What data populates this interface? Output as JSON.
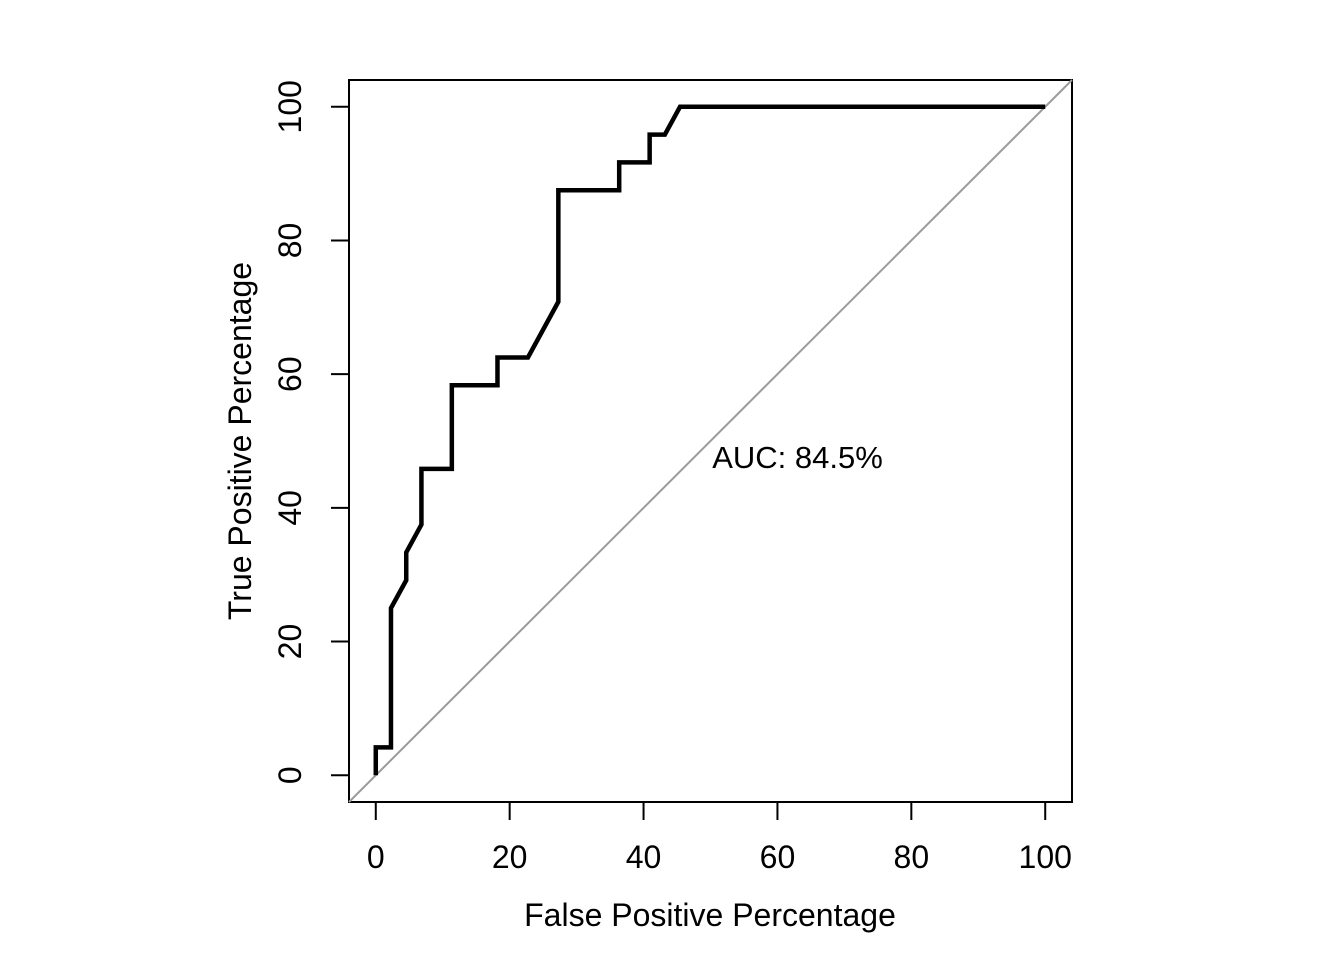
{
  "chart_data": {
    "type": "line",
    "title": "",
    "xlabel": "False Positive Percentage",
    "ylabel": "True Positive Percentage",
    "xlim": [
      0,
      100
    ],
    "ylim": [
      0,
      100
    ],
    "xticks": [
      0,
      20,
      40,
      60,
      80,
      100
    ],
    "yticks": [
      0,
      20,
      40,
      60,
      80,
      100
    ],
    "grid": false,
    "legend": "none",
    "axis_padding_fraction": 0.04,
    "series": [
      {
        "name": "ROC curve",
        "color": "#000000",
        "line_width": 4.5,
        "points": [
          [
            0,
            0
          ],
          [
            0,
            4.17
          ],
          [
            2.27,
            4.17
          ],
          [
            2.27,
            25
          ],
          [
            4.55,
            29.17
          ],
          [
            4.55,
            33.33
          ],
          [
            6.82,
            37.5
          ],
          [
            6.82,
            45.83
          ],
          [
            11.36,
            45.83
          ],
          [
            11.36,
            58.33
          ],
          [
            18.18,
            58.33
          ],
          [
            18.18,
            62.5
          ],
          [
            22.73,
            62.5
          ],
          [
            27.27,
            70.83
          ],
          [
            27.27,
            87.5
          ],
          [
            36.36,
            87.5
          ],
          [
            36.36,
            91.67
          ],
          [
            40.91,
            91.67
          ],
          [
            40.91,
            95.83
          ],
          [
            43.18,
            95.83
          ],
          [
            45.45,
            100
          ],
          [
            100,
            100
          ]
        ]
      }
    ],
    "reference_line": {
      "name": "chance diagonal",
      "color": "#9b9b9b",
      "line_width": 2,
      "slope": 1,
      "intercept": 0
    },
    "annotation": {
      "text": "AUC: 84.5%",
      "x": 63,
      "y": 47.5
    }
  },
  "colors": {
    "background": "#ffffff",
    "axis": "#000000",
    "text": "#000000"
  }
}
